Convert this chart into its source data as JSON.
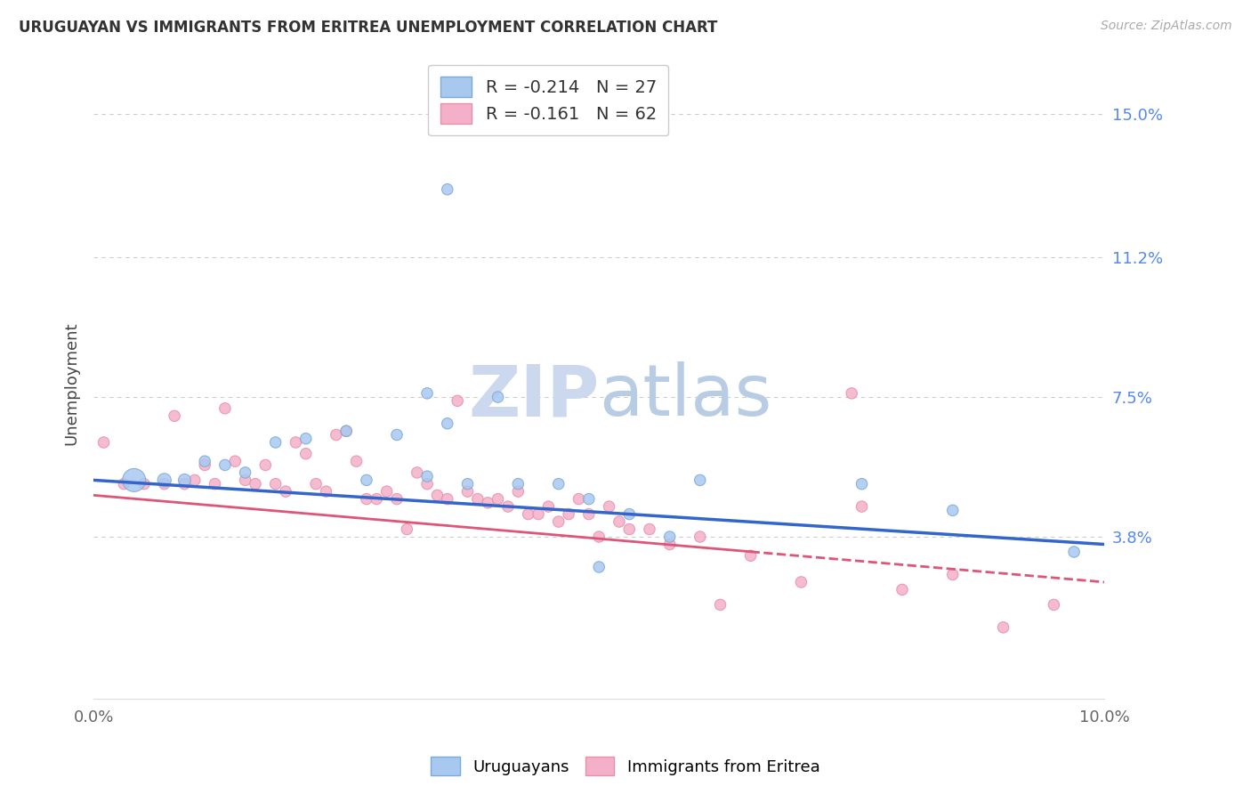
{
  "title": "URUGUAYAN VS IMMIGRANTS FROM ERITREA UNEMPLOYMENT CORRELATION CHART",
  "source": "Source: ZipAtlas.com",
  "ylabel": "Unemployment",
  "yticks": [
    0.038,
    0.075,
    0.112,
    0.15
  ],
  "ytick_labels": [
    "3.8%",
    "7.5%",
    "11.2%",
    "15.0%"
  ],
  "xlim": [
    0.0,
    0.1
  ],
  "ylim": [
    -0.005,
    0.162
  ],
  "blue_R": "-0.214",
  "blue_N": "27",
  "pink_R": "-0.161",
  "pink_N": "62",
  "blue_color": "#a8c8f0",
  "pink_color": "#f4b0c8",
  "blue_edge_color": "#7aaad8",
  "pink_edge_color": "#e890a8",
  "blue_line_color": "#3366cc",
  "pink_line_color": "#dd5577",
  "watermark_color": "#ccd8ee",
  "blue_line_y0": 0.053,
  "blue_line_y1": 0.036,
  "pink_line_y0": 0.049,
  "pink_line_y1": 0.026,
  "blue_points": [
    [
      0.004,
      0.053
    ],
    [
      0.007,
      0.053
    ],
    [
      0.009,
      0.053
    ],
    [
      0.011,
      0.058
    ],
    [
      0.013,
      0.057
    ],
    [
      0.015,
      0.055
    ],
    [
      0.018,
      0.063
    ],
    [
      0.021,
      0.064
    ],
    [
      0.025,
      0.066
    ],
    [
      0.027,
      0.053
    ],
    [
      0.03,
      0.065
    ],
    [
      0.033,
      0.054
    ],
    [
      0.033,
      0.076
    ],
    [
      0.035,
      0.068
    ],
    [
      0.037,
      0.052
    ],
    [
      0.04,
      0.075
    ],
    [
      0.042,
      0.052
    ],
    [
      0.046,
      0.052
    ],
    [
      0.049,
      0.048
    ],
    [
      0.05,
      0.03
    ],
    [
      0.053,
      0.044
    ],
    [
      0.035,
      0.13
    ],
    [
      0.057,
      0.038
    ],
    [
      0.06,
      0.053
    ],
    [
      0.076,
      0.052
    ],
    [
      0.085,
      0.045
    ],
    [
      0.097,
      0.034
    ]
  ],
  "blue_sizes": [
    350,
    120,
    100,
    80,
    80,
    80,
    80,
    80,
    80,
    80,
    80,
    80,
    80,
    80,
    80,
    80,
    80,
    80,
    80,
    80,
    80,
    80,
    80,
    80,
    80,
    80,
    80
  ],
  "pink_points": [
    [
      0.001,
      0.063
    ],
    [
      0.003,
      0.052
    ],
    [
      0.005,
      0.052
    ],
    [
      0.007,
      0.052
    ],
    [
      0.008,
      0.07
    ],
    [
      0.009,
      0.052
    ],
    [
      0.01,
      0.053
    ],
    [
      0.011,
      0.057
    ],
    [
      0.012,
      0.052
    ],
    [
      0.013,
      0.072
    ],
    [
      0.014,
      0.058
    ],
    [
      0.015,
      0.053
    ],
    [
      0.016,
      0.052
    ],
    [
      0.017,
      0.057
    ],
    [
      0.018,
      0.052
    ],
    [
      0.019,
      0.05
    ],
    [
      0.02,
      0.063
    ],
    [
      0.021,
      0.06
    ],
    [
      0.022,
      0.052
    ],
    [
      0.023,
      0.05
    ],
    [
      0.024,
      0.065
    ],
    [
      0.025,
      0.066
    ],
    [
      0.026,
      0.058
    ],
    [
      0.027,
      0.048
    ],
    [
      0.028,
      0.048
    ],
    [
      0.029,
      0.05
    ],
    [
      0.03,
      0.048
    ],
    [
      0.031,
      0.04
    ],
    [
      0.032,
      0.055
    ],
    [
      0.033,
      0.052
    ],
    [
      0.034,
      0.049
    ],
    [
      0.035,
      0.048
    ],
    [
      0.036,
      0.074
    ],
    [
      0.037,
      0.05
    ],
    [
      0.038,
      0.048
    ],
    [
      0.039,
      0.047
    ],
    [
      0.04,
      0.048
    ],
    [
      0.041,
      0.046
    ],
    [
      0.042,
      0.05
    ],
    [
      0.043,
      0.044
    ],
    [
      0.044,
      0.044
    ],
    [
      0.045,
      0.046
    ],
    [
      0.046,
      0.042
    ],
    [
      0.047,
      0.044
    ],
    [
      0.048,
      0.048
    ],
    [
      0.049,
      0.044
    ],
    [
      0.05,
      0.038
    ],
    [
      0.051,
      0.046
    ],
    [
      0.052,
      0.042
    ],
    [
      0.053,
      0.04
    ],
    [
      0.055,
      0.04
    ],
    [
      0.057,
      0.036
    ],
    [
      0.06,
      0.038
    ],
    [
      0.062,
      0.02
    ],
    [
      0.065,
      0.033
    ],
    [
      0.07,
      0.026
    ],
    [
      0.075,
      0.076
    ],
    [
      0.076,
      0.046
    ],
    [
      0.08,
      0.024
    ],
    [
      0.085,
      0.028
    ],
    [
      0.09,
      0.014
    ],
    [
      0.095,
      0.02
    ]
  ],
  "pink_sizes": [
    80,
    80,
    80,
    80,
    80,
    80,
    80,
    80,
    80,
    80,
    80,
    80,
    80,
    80,
    80,
    80,
    80,
    80,
    80,
    80,
    80,
    80,
    80,
    80,
    80,
    80,
    80,
    80,
    80,
    80,
    80,
    80,
    80,
    80,
    80,
    80,
    80,
    80,
    80,
    80,
    80,
    80,
    80,
    80,
    80,
    80,
    80,
    80,
    80,
    80,
    80,
    80,
    80,
    80,
    80,
    80,
    80,
    80,
    80,
    80,
    80,
    80
  ]
}
